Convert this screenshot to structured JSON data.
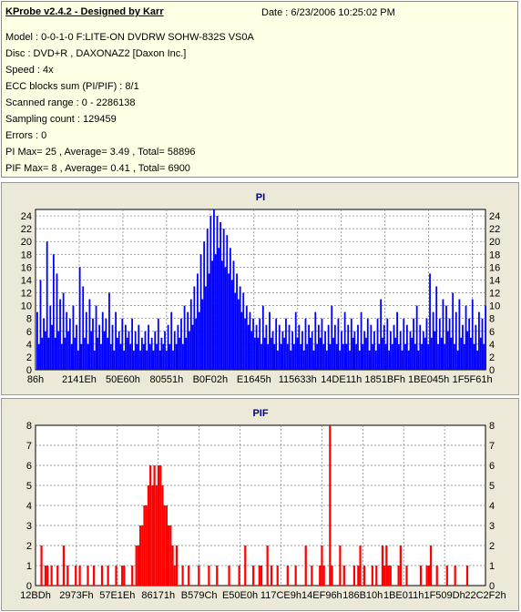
{
  "header": {
    "title": "KProbe v2.4.2 - Designed by Karr",
    "date": "Date : 6/23/2006 10:25:02 PM",
    "lines": [
      "Model : 0-0-1-0 F:LITE-ON DVDRW SOHW-832S  VS0A",
      "Disc : DVD+R , DAXONAZ2 [Daxon Inc.]",
      "Speed : 4x",
      "ECC blocks sum (PI/PIF) : 8/1",
      "Scanned range : 0 - 2286138",
      "Sampling count : 129459",
      "Errors : 0",
      "PI Max= 25 , Average= 3.49 , Total= 58896",
      "PIF Max= 8 , Average= 0.41 , Total= 6900"
    ]
  },
  "colors": {
    "pi": "#0000ff",
    "pif": "#ff0000",
    "title": "#000080",
    "grid": "#7a7a7a",
    "panel_bg": "#ece9d8"
  },
  "chart_data": [
    {
      "type": "bar",
      "title": "PI",
      "ylim": [
        0,
        25
      ],
      "yticks": [
        0,
        2,
        4,
        6,
        8,
        10,
        12,
        14,
        16,
        18,
        20,
        22,
        24
      ],
      "xtick_labels": [
        "86h",
        "2141Eh",
        "50E60h",
        "80551h",
        "B0F02h",
        "E1645h",
        "115633h",
        "14DE11h",
        "1851BFh",
        "1BE045h",
        "1F5F61h"
      ],
      "max": 25,
      "average": 3.49,
      "total": 58896,
      "description_of_series": "blue bars per sampling position",
      "values": [
        9,
        4,
        14,
        5,
        8,
        6,
        20,
        5,
        10,
        7,
        18,
        5,
        15,
        6,
        11,
        4,
        12,
        5,
        9,
        6,
        8,
        4,
        10,
        5,
        7,
        3,
        16,
        4,
        13,
        5,
        9,
        4,
        11,
        6,
        8,
        3,
        10,
        5,
        7,
        4,
        9,
        6,
        8,
        5,
        12,
        4,
        7,
        3,
        9,
        5,
        6,
        4,
        8,
        3,
        7,
        5,
        6,
        4,
        8,
        3,
        6,
        4,
        7,
        3,
        5,
        4,
        6,
        3,
        7,
        4,
        5,
        3,
        6,
        4,
        8,
        3,
        5,
        4,
        6,
        3,
        7,
        4,
        9,
        3,
        6,
        4,
        7,
        5,
        8,
        4,
        10,
        5,
        9,
        6,
        11,
        7,
        13,
        8,
        15,
        9,
        18,
        11,
        20,
        13,
        22,
        15,
        24,
        17,
        25,
        18,
        24,
        19,
        23,
        17,
        22,
        16,
        21,
        15,
        19,
        14,
        17,
        12,
        15,
        11,
        13,
        9,
        12,
        8,
        10,
        7,
        9,
        6,
        8,
        5,
        7,
        5,
        8,
        4,
        10,
        5,
        7,
        4,
        9,
        5,
        6,
        4,
        8,
        3,
        7,
        4,
        6,
        5,
        8,
        4,
        7,
        3,
        6,
        4,
        9,
        5,
        7,
        4,
        6,
        3,
        8,
        4,
        7,
        5,
        6,
        3,
        9,
        4,
        7,
        5,
        8,
        4,
        6,
        3,
        7,
        4,
        10,
        5,
        7,
        4,
        8,
        3,
        6,
        4,
        9,
        4,
        7,
        3,
        8,
        5,
        6,
        4,
        7,
        3,
        9,
        4,
        6,
        5,
        8,
        3,
        7,
        4,
        6,
        3,
        8,
        4,
        11,
        5,
        7,
        4,
        8,
        3,
        6,
        4,
        7,
        5,
        9,
        4,
        6,
        3,
        8,
        4,
        7,
        3,
        6,
        5,
        8,
        4,
        10,
        3,
        7,
        4,
        6,
        5,
        8,
        4,
        15,
        5,
        9,
        6,
        13,
        4,
        8,
        5,
        11,
        4,
        10,
        6,
        8,
        5,
        12,
        4,
        9,
        3,
        11,
        5,
        7,
        4,
        10,
        6,
        8,
        5,
        11,
        4,
        7,
        3,
        9,
        5,
        8,
        4,
        10
      ]
    },
    {
      "type": "bar",
      "title": "PIF",
      "ylim": [
        0,
        8
      ],
      "yticks": [
        0,
        1,
        2,
        3,
        4,
        5,
        6,
        7,
        8
      ],
      "xtick_labels": [
        "12BDh",
        "2973Fh",
        "57E1Eh",
        "86171h",
        "B579Ch",
        "E50E0h",
        "117CE9h",
        "14EF96h",
        "186B10h",
        "1BE011h",
        "1F509Dh",
        "22C2F2h"
      ],
      "max": 8,
      "average": 0.41,
      "total": 6900,
      "values": [
        0,
        0,
        2,
        0,
        1,
        1,
        0,
        1,
        0,
        0,
        1,
        0,
        0,
        2,
        0,
        1,
        0,
        0,
        0,
        1,
        0,
        1,
        0,
        0,
        0,
        1,
        0,
        0,
        1,
        0,
        0,
        0,
        1,
        0,
        0,
        1,
        0,
        0,
        0,
        1,
        0,
        0,
        1,
        1,
        0,
        0,
        0,
        1,
        0,
        2,
        2,
        3,
        3,
        4,
        4,
        5,
        6,
        5,
        6,
        5,
        6,
        6,
        5,
        4,
        4,
        3,
        3,
        2,
        1,
        2,
        0,
        0,
        1,
        0,
        0,
        1,
        0,
        0,
        0,
        0,
        1,
        0,
        0,
        0,
        0,
        1,
        0,
        0,
        0,
        1,
        0,
        0,
        0,
        0,
        0,
        1,
        0,
        0,
        0,
        0,
        1,
        0,
        0,
        2,
        0,
        0,
        0,
        1,
        0,
        0,
        1,
        1,
        0,
        0,
        2,
        0,
        1,
        0,
        0,
        1,
        0,
        0,
        0,
        0,
        1,
        0,
        0,
        0,
        1,
        0,
        0,
        0,
        0,
        2,
        0,
        0,
        1,
        0,
        0,
        0,
        1,
        2,
        1,
        0,
        0,
        8,
        1,
        0,
        0,
        0,
        2,
        0,
        1,
        0,
        0,
        0,
        0,
        1,
        0,
        1,
        2,
        0,
        1,
        0,
        0,
        0,
        1,
        0,
        1,
        0,
        0,
        2,
        1,
        2,
        1,
        1,
        0,
        0,
        0,
        1,
        2,
        0,
        0,
        1,
        0,
        0,
        0,
        0,
        0,
        0,
        1,
        0,
        0,
        1,
        1,
        2,
        0,
        0,
        1,
        0,
        0,
        0,
        0,
        1,
        0,
        0,
        0,
        1,
        0,
        0,
        0,
        0,
        0,
        1,
        0,
        0,
        0,
        0,
        0,
        0,
        0,
        0,
        0
      ]
    }
  ]
}
